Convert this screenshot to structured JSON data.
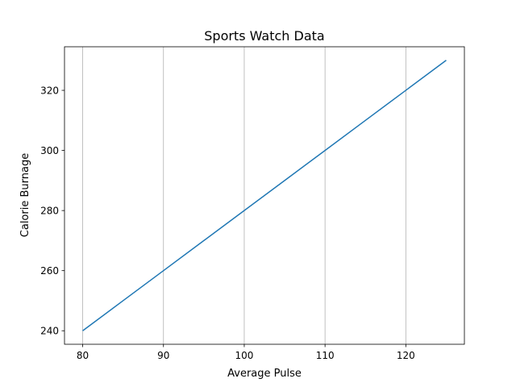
{
  "chart_data": {
    "type": "line",
    "title": "Sports Watch Data",
    "xlabel": "Average Pulse",
    "ylabel": "Calorie Burnage",
    "x": [
      80,
      85,
      90,
      95,
      100,
      105,
      110,
      115,
      120,
      125
    ],
    "series": [
      {
        "values": [
          240,
          250,
          260,
          270,
          280,
          290,
          300,
          310,
          320,
          330
        ],
        "color": "#1f77b4"
      }
    ],
    "xlim": [
      77.75,
      127.25
    ],
    "ylim": [
      235.5,
      334.5
    ],
    "xticks": [
      80,
      90,
      100,
      110,
      120
    ],
    "yticks": [
      240,
      260,
      280,
      300,
      320
    ],
    "grid": {
      "x": true,
      "y": false,
      "color": "#b0b0b0"
    }
  }
}
